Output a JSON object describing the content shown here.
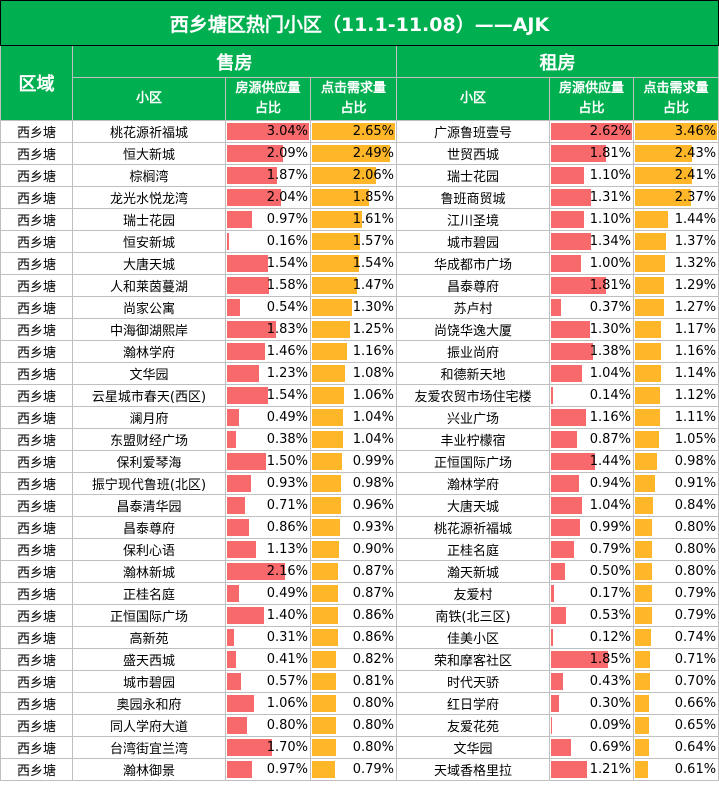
{
  "title": "西乡塘区热门小区（11.1-11.08）——AJK",
  "header": {
    "area": "区域",
    "sale": "售房",
    "rent": "租房",
    "community": "小区",
    "supply_line1": "房源供应量",
    "supply_line2": "占比",
    "demand_line1": "点击需求量",
    "demand_line2": "占比"
  },
  "scale_max": {
    "sale_supply": 3.04,
    "sale_demand": 2.65,
    "rent_supply": 2.62,
    "rent_demand": 3.46
  },
  "colors": {
    "header_bg": "#00b050",
    "supply_bar": "#f8696b",
    "demand_bar": "#ffb628"
  },
  "rows": [
    {
      "area": "西乡塘",
      "sale_name": "桃花源祈福城",
      "sale_supply": "3.04%",
      "sale_demand": "2.65%",
      "rent_name": "广源鲁班壹号",
      "rent_supply": "2.62%",
      "rent_demand": "3.46%"
    },
    {
      "area": "西乡塘",
      "sale_name": "恒大新城",
      "sale_supply": "2.09%",
      "sale_demand": "2.49%",
      "rent_name": "世贸西城",
      "rent_supply": "1.81%",
      "rent_demand": "2.43%"
    },
    {
      "area": "西乡塘",
      "sale_name": "棕榈湾",
      "sale_supply": "1.87%",
      "sale_demand": "2.06%",
      "rent_name": "瑞士花园",
      "rent_supply": "1.10%",
      "rent_demand": "2.41%"
    },
    {
      "area": "西乡塘",
      "sale_name": "龙光水悦龙湾",
      "sale_supply": "2.04%",
      "sale_demand": "1.85%",
      "rent_name": "鲁班商贸城",
      "rent_supply": "1.31%",
      "rent_demand": "2.37%"
    },
    {
      "area": "西乡塘",
      "sale_name": "瑞士花园",
      "sale_supply": "0.97%",
      "sale_demand": "1.61%",
      "rent_name": "江川圣境",
      "rent_supply": "1.10%",
      "rent_demand": "1.44%"
    },
    {
      "area": "西乡塘",
      "sale_name": "恒安新城",
      "sale_supply": "0.16%",
      "sale_demand": "1.57%",
      "rent_name": "城市碧园",
      "rent_supply": "1.34%",
      "rent_demand": "1.37%"
    },
    {
      "area": "西乡塘",
      "sale_name": "大唐天城",
      "sale_supply": "1.54%",
      "sale_demand": "1.54%",
      "rent_name": "华成都市广场",
      "rent_supply": "1.00%",
      "rent_demand": "1.32%"
    },
    {
      "area": "西乡塘",
      "sale_name": "人和莱茵蔓湖",
      "sale_supply": "1.58%",
      "sale_demand": "1.47%",
      "rent_name": "昌泰尊府",
      "rent_supply": "1.81%",
      "rent_demand": "1.29%"
    },
    {
      "area": "西乡塘",
      "sale_name": "尚家公寓",
      "sale_supply": "0.54%",
      "sale_demand": "1.30%",
      "rent_name": "苏卢村",
      "rent_supply": "0.37%",
      "rent_demand": "1.27%"
    },
    {
      "area": "西乡塘",
      "sale_name": "中海御湖熙岸",
      "sale_supply": "1.83%",
      "sale_demand": "1.25%",
      "rent_name": "尚饶华逸大厦",
      "rent_supply": "1.30%",
      "rent_demand": "1.17%"
    },
    {
      "area": "西乡塘",
      "sale_name": "瀚林学府",
      "sale_supply": "1.46%",
      "sale_demand": "1.16%",
      "rent_name": "振业尚府",
      "rent_supply": "1.38%",
      "rent_demand": "1.16%"
    },
    {
      "area": "西乡塘",
      "sale_name": "文华园",
      "sale_supply": "1.23%",
      "sale_demand": "1.08%",
      "rent_name": "和德新天地",
      "rent_supply": "1.04%",
      "rent_demand": "1.14%"
    },
    {
      "area": "西乡塘",
      "sale_name": "云星城市春天(西区)",
      "sale_supply": "1.54%",
      "sale_demand": "1.06%",
      "rent_name": "友爱农贸市场住宅楼",
      "rent_supply": "0.14%",
      "rent_demand": "1.12%"
    },
    {
      "area": "西乡塘",
      "sale_name": "澜月府",
      "sale_supply": "0.49%",
      "sale_demand": "1.04%",
      "rent_name": "兴业广场",
      "rent_supply": "1.16%",
      "rent_demand": "1.11%"
    },
    {
      "area": "西乡塘",
      "sale_name": "东盟财经广场",
      "sale_supply": "0.38%",
      "sale_demand": "1.04%",
      "rent_name": "丰业柠檬宿",
      "rent_supply": "0.87%",
      "rent_demand": "1.05%"
    },
    {
      "area": "西乡塘",
      "sale_name": "保利爱琴海",
      "sale_supply": "1.50%",
      "sale_demand": "0.99%",
      "rent_name": "正恒国际广场",
      "rent_supply": "1.44%",
      "rent_demand": "0.98%"
    },
    {
      "area": "西乡塘",
      "sale_name": "振宁现代鲁班(北区)",
      "sale_supply": "0.93%",
      "sale_demand": "0.98%",
      "rent_name": "瀚林学府",
      "rent_supply": "0.94%",
      "rent_demand": "0.91%"
    },
    {
      "area": "西乡塘",
      "sale_name": "昌泰清华园",
      "sale_supply": "0.71%",
      "sale_demand": "0.96%",
      "rent_name": "大唐天城",
      "rent_supply": "1.04%",
      "rent_demand": "0.84%"
    },
    {
      "area": "西乡塘",
      "sale_name": "昌泰尊府",
      "sale_supply": "0.86%",
      "sale_demand": "0.93%",
      "rent_name": "桃花源祈福城",
      "rent_supply": "0.99%",
      "rent_demand": "0.80%"
    },
    {
      "area": "西乡塘",
      "sale_name": "保利心语",
      "sale_supply": "1.13%",
      "sale_demand": "0.90%",
      "rent_name": "正桂名庭",
      "rent_supply": "0.79%",
      "rent_demand": "0.80%"
    },
    {
      "area": "西乡塘",
      "sale_name": "瀚林新城",
      "sale_supply": "2.16%",
      "sale_demand": "0.87%",
      "rent_name": "瀚天新城",
      "rent_supply": "0.50%",
      "rent_demand": "0.80%"
    },
    {
      "area": "西乡塘",
      "sale_name": "正桂名庭",
      "sale_supply": "0.49%",
      "sale_demand": "0.87%",
      "rent_name": "友爱村",
      "rent_supply": "0.17%",
      "rent_demand": "0.79%"
    },
    {
      "area": "西乡塘",
      "sale_name": "正恒国际广场",
      "sale_supply": "1.40%",
      "sale_demand": "0.86%",
      "rent_name": "南铁(北三区)",
      "rent_supply": "0.53%",
      "rent_demand": "0.79%"
    },
    {
      "area": "西乡塘",
      "sale_name": "高新苑",
      "sale_supply": "0.31%",
      "sale_demand": "0.86%",
      "rent_name": "佳美小区",
      "rent_supply": "0.12%",
      "rent_demand": "0.74%"
    },
    {
      "area": "西乡塘",
      "sale_name": "盛天西城",
      "sale_supply": "0.41%",
      "sale_demand": "0.82%",
      "rent_name": "荣和摩客社区",
      "rent_supply": "1.85%",
      "rent_demand": "0.71%"
    },
    {
      "area": "西乡塘",
      "sale_name": "城市碧园",
      "sale_supply": "0.57%",
      "sale_demand": "0.81%",
      "rent_name": "时代天骄",
      "rent_supply": "0.43%",
      "rent_demand": "0.70%"
    },
    {
      "area": "西乡塘",
      "sale_name": "奥园永和府",
      "sale_supply": "1.06%",
      "sale_demand": "0.80%",
      "rent_name": "红日学府",
      "rent_supply": "0.30%",
      "rent_demand": "0.66%"
    },
    {
      "area": "西乡塘",
      "sale_name": "同人学府大道",
      "sale_supply": "0.80%",
      "sale_demand": "0.80%",
      "rent_name": "友爱花苑",
      "rent_supply": "0.09%",
      "rent_demand": "0.65%"
    },
    {
      "area": "西乡塘",
      "sale_name": "台湾街宜兰湾",
      "sale_supply": "1.70%",
      "sale_demand": "0.80%",
      "rent_name": "文华园",
      "rent_supply": "0.69%",
      "rent_demand": "0.64%"
    },
    {
      "area": "西乡塘",
      "sale_name": "瀚林御景",
      "sale_supply": "0.97%",
      "sale_demand": "0.79%",
      "rent_name": "天域香格里拉",
      "rent_supply": "1.21%",
      "rent_demand": "0.61%"
    }
  ]
}
